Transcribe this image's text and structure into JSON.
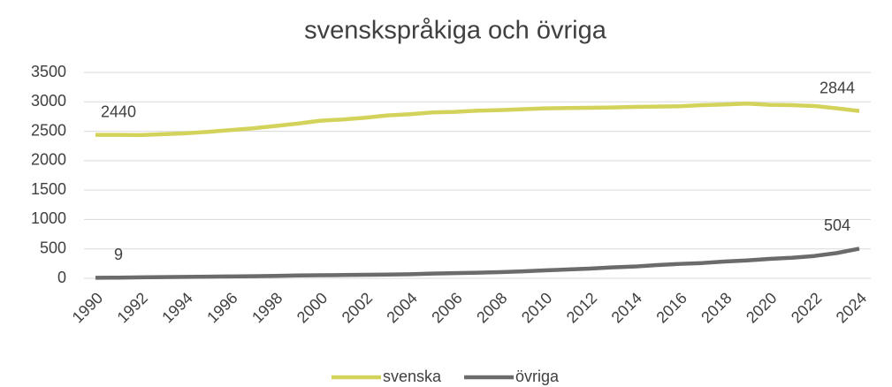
{
  "chart_data": {
    "type": "line",
    "title": "svenskspråkiga och övriga",
    "x": [
      1990,
      1991,
      1992,
      1993,
      1994,
      1995,
      1996,
      1997,
      1998,
      1999,
      2000,
      2001,
      2002,
      2003,
      2004,
      2005,
      2006,
      2007,
      2008,
      2009,
      2010,
      2011,
      2012,
      2013,
      2014,
      2015,
      2016,
      2017,
      2018,
      2019,
      2020,
      2021,
      2022,
      2023,
      2024
    ],
    "xlim": [
      1990,
      2024
    ],
    "xticks": [
      1990,
      1992,
      1994,
      1996,
      1998,
      2000,
      2002,
      2004,
      2006,
      2008,
      2010,
      2012,
      2014,
      2016,
      2018,
      2020,
      2022,
      2024
    ],
    "ylim": [
      0,
      3500
    ],
    "yticks": [
      0,
      500,
      1000,
      1500,
      2000,
      2500,
      3000,
      3500
    ],
    "grid": true,
    "legend": "bottom",
    "series": [
      {
        "name": "svenska",
        "color": "#d3d35c",
        "values": [
          2440,
          2440,
          2435,
          2450,
          2465,
          2490,
          2520,
          2550,
          2590,
          2630,
          2680,
          2700,
          2730,
          2770,
          2790,
          2820,
          2830,
          2850,
          2860,
          2875,
          2890,
          2895,
          2900,
          2905,
          2915,
          2920,
          2925,
          2945,
          2955,
          2970,
          2950,
          2945,
          2930,
          2890,
          2844
        ]
      },
      {
        "name": "övriga",
        "color": "#6b6b6b",
        "values": [
          9,
          12,
          16,
          20,
          24,
          28,
          32,
          36,
          42,
          48,
          52,
          56,
          60,
          64,
          70,
          80,
          88,
          96,
          105,
          118,
          135,
          150,
          165,
          185,
          200,
          225,
          245,
          260,
          285,
          305,
          330,
          350,
          380,
          430,
          504
        ]
      }
    ]
  }
}
